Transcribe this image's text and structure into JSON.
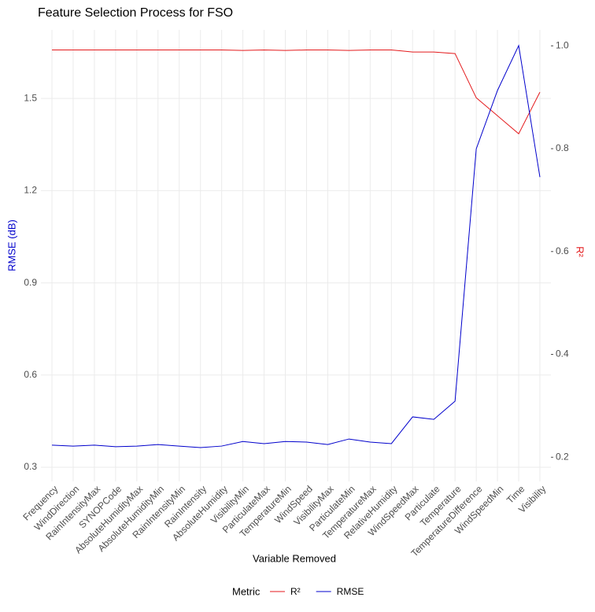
{
  "chart_data": {
    "type": "line",
    "title": "Feature Selection Process for FSO",
    "x_label": "Variable Removed",
    "y_label": "RMSE (dB)",
    "y2_label": "R²",
    "legend_title": "Metric",
    "categories": [
      "Frequency",
      "WindDirection",
      "RainIntensityMax",
      "SYNOPCode",
      "AbsoluteHumidityMax",
      "AbsoluteHumidityMin",
      "RainIntensityMin",
      "RainIntensity",
      "AbsoluteHumidity",
      "VisibilityMin",
      "ParticulateMax",
      "TemperatureMin",
      "WindSpeed",
      "VisibilityMax",
      "ParticulateMin",
      "TemperatureMax",
      "RelativeHumidity",
      "WindSpeedMax",
      "Particulate",
      "Temperature",
      "TemperatureDifference",
      "WindSpeedMin",
      "Time",
      "Visibility"
    ],
    "series": [
      {
        "name": "R²",
        "color": "#e41a1c",
        "axis": "y2",
        "values": [
          0.992,
          0.992,
          0.992,
          0.992,
          0.992,
          0.992,
          0.992,
          0.992,
          0.992,
          0.991,
          0.992,
          0.991,
          0.992,
          0.992,
          0.991,
          0.992,
          0.992,
          0.988,
          0.988,
          0.985,
          0.899,
          0.864,
          0.829,
          0.91
        ]
      },
      {
        "name": "RMSE",
        "color": "#0000cc",
        "values": [
          0.372,
          0.369,
          0.372,
          0.367,
          0.369,
          0.374,
          0.369,
          0.364,
          0.369,
          0.384,
          0.377,
          0.384,
          0.382,
          0.374,
          0.392,
          0.382,
          0.377,
          0.464,
          0.456,
          0.515,
          1.336,
          1.526,
          1.672,
          1.244
        ]
      }
    ],
    "ylim": [
      0.254,
      1.723
    ],
    "yticks": [
      0.3,
      0.6,
      0.9,
      1.2,
      1.5
    ],
    "y2lim": [
      0.153,
      1.031
    ],
    "y2ticks": [
      0.2,
      0.4,
      0.6,
      0.8,
      {
        "value": 1,
        "label": "1.0"
      }
    ],
    "grid": true,
    "legend_position": "bottom"
  }
}
